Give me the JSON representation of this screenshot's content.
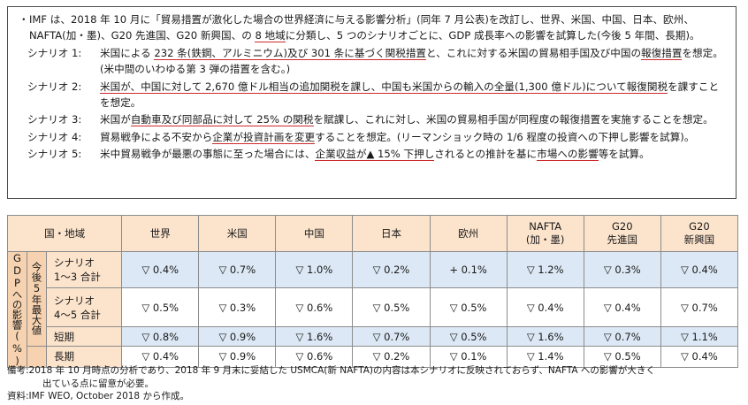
{
  "box": {
    "bullet_mark": "・",
    "intro_a": "IMF は、2018 年 10 月に「貿易措置が激化した場合の世界経済に与える影響分析」(同年 7 月公表)を改訂し、世界、米国、中国、日本、欧州、NAFTA(加・墨)、G20 先進国、G20 新興国、の ",
    "intro_ul": "8 地域",
    "intro_b": "に分類し、5 つのシナリオごとに、GDP 成長率への影響を試算した(今後 5 年間、長期)。",
    "s1_label": "シナリオ 1:",
    "s1_a": "米国による ",
    "s1_ul": "232 条(鉄鋼、アルミニウム)及び 301 条に基づく関税措置",
    "s1_b": "と、これに対する米国の貿易相手国及び中国の",
    "s1_ul2": "報復措置",
    "s1_c": "を想定。(米中間のいわゆる第 3 弾の措置を含む。)",
    "s2_label": "シナリオ 2:",
    "s2_ul": "米国が、中国に対して 2,670 億ドル相当の追加関税を課し、中国も米国からの輸入の全量(1,300 億ドル)について報復関税",
    "s2_b": "を課すことを想定。",
    "s3_label": "シナリオ 3:",
    "s3_a": "米国が",
    "s3_ul": "自動車及び同部品に対して 25% の関税",
    "s3_b": "を賦課し、これに対し、米国の貿易相手国が同程度の報復措置を実施することを想定。",
    "s4_label": "シナリオ 4:",
    "s4_a": "貿易戦争による不安から",
    "s4_ul": "企業が投資計画を変更",
    "s4_b": "することを想定。(リーマンショック時の 1/6 程度の投資への下押し影響を試算)。",
    "s5_label": "シナリオ 5:",
    "s5_a": "米中貿易戦争が最悪の事態に至った場合には、",
    "s5_ul": "企業収益が▲ 15% 下押し",
    "s5_b": "されるとの推計を基に",
    "s5_ul2": "市場への影響",
    "s5_c": "等を試算。"
  },
  "table": {
    "header_region": "国・地域",
    "columns": [
      {
        "line1": "世界",
        "line2": ""
      },
      {
        "line1": "米国",
        "line2": ""
      },
      {
        "line1": "中国",
        "line2": ""
      },
      {
        "line1": "日本",
        "line2": ""
      },
      {
        "line1": "欧州",
        "line2": ""
      },
      {
        "line1": "NAFTA",
        "line2": "(加・墨)"
      },
      {
        "line1": "G20",
        "line2": "先進国"
      },
      {
        "line1": "G20",
        "line2": "新興国"
      }
    ],
    "gdp_label": "GDPへの影響(%)",
    "period_label": "今後5年最大値",
    "rows": [
      {
        "name1": "シナリオ",
        "name2": "1〜3 合計",
        "values": [
          "▽ 0.4%",
          "▽ 0.7%",
          "▽ 1.0%",
          "▽ 0.2%",
          "+ 0.1%",
          "▽ 1.2%",
          "▽ 0.3%",
          "▽ 0.4%"
        ]
      },
      {
        "name1": "シナリオ",
        "name2": "4〜5 合計",
        "values": [
          "▽ 0.5%",
          "▽ 0.3%",
          "▽ 0.6%",
          "▽ 0.5%",
          "▽ 0.5%",
          "▽ 0.4%",
          "▽ 0.4%",
          "▽ 0.7%"
        ]
      },
      {
        "name1": "短期",
        "name2": "",
        "values": [
          "▽ 0.8%",
          "▽ 0.9%",
          "▽ 1.6%",
          "▽ 0.7%",
          "▽ 0.5%",
          "▽ 1.6%",
          "▽ 0.7%",
          "▽ 1.1%"
        ]
      },
      {
        "name1": "長期",
        "name2": "",
        "values": [
          "▽ 0.4%",
          "▽ 0.9%",
          "▽ 0.6%",
          "▽ 0.2%",
          "▽ 0.1%",
          "▽ 1.4%",
          "▽ 0.5%",
          "▽ 0.4%"
        ]
      }
    ]
  },
  "notes": {
    "note_label": "備考:",
    "note_text": "2018 年 10 月時点の分析であり、2018 年 9 月末に妥結した USMCA(新 NAFTA)の内容は本シナリオに反映されておらず、NAFTA への影響が大きく",
    "note_text2": "出ている点に留意が必要。",
    "source_label": "資料:",
    "source_text": "IMF WEO, October 2018 から作成。"
  }
}
